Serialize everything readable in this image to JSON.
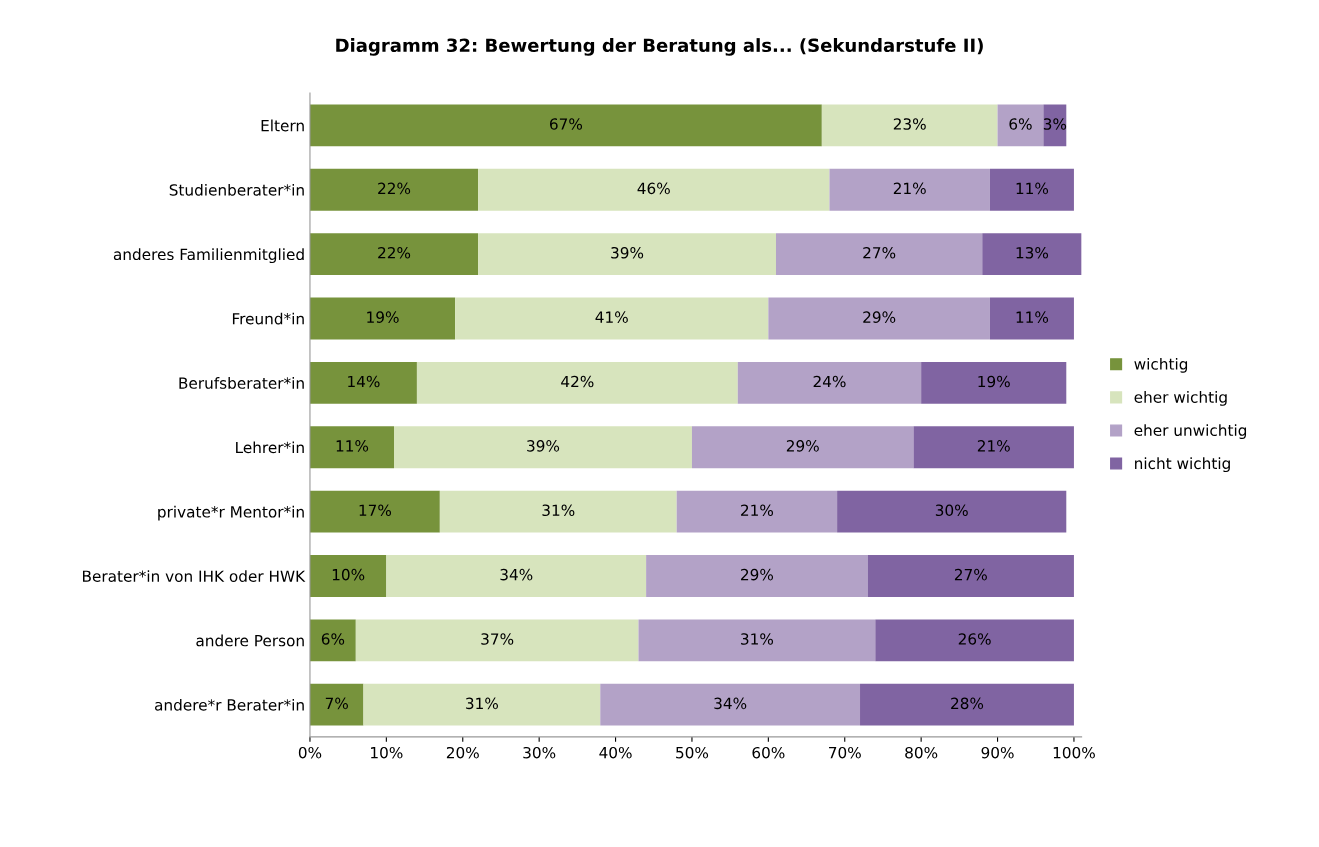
{
  "chart_data": {
    "type": "bar",
    "orientation": "horizontal",
    "stacked": true,
    "title": "Diagramm 32: Bewertung der Beratung als... (Sekundarstufe II)",
    "categories": [
      "Eltern",
      "Studienberater*in",
      "anderes Familienmitglied",
      "Freund*in",
      "Berufsberater*in",
      "Lehrer*in",
      "private*r Mentor*in",
      "Berater*in von IHK oder HWK",
      "andere Person",
      "andere*r Berater*in"
    ],
    "series": [
      {
        "name": "wichtig",
        "color": "#77933c",
        "values": [
          67,
          22,
          22,
          19,
          14,
          11,
          17,
          10,
          6,
          7
        ],
        "value_labels": [
          "67%",
          "22%",
          "22%",
          "19%",
          "14%",
          "11%",
          "17%",
          "10%",
          "6%",
          "7%"
        ]
      },
      {
        "name": "eher wichtig",
        "color": "#d7e4bd",
        "values": [
          23,
          46,
          39,
          41,
          42,
          39,
          31,
          34,
          37,
          31
        ],
        "value_labels": [
          "23%",
          "46%",
          "39%",
          "41%",
          "42%",
          "39%",
          "31%",
          "34%",
          "37%",
          "31%"
        ]
      },
      {
        "name": "eher unwichtig",
        "color": "#b3a2c7",
        "values": [
          6,
          21,
          27,
          29,
          24,
          29,
          21,
          29,
          31,
          34
        ],
        "value_labels": [
          "6%",
          "21%",
          "27%",
          "29%",
          "24%",
          "29%",
          "21%",
          "29%",
          "31%",
          "34%"
        ]
      },
      {
        "name": "nicht wichtig",
        "color": "#8064a2",
        "values": [
          3,
          11,
          13,
          11,
          19,
          21,
          30,
          27,
          26,
          28
        ],
        "value_labels": [
          "3%",
          "11%",
          "13%",
          "11%",
          "19%",
          "21%",
          "30%",
          "27%",
          "26%",
          "28%"
        ]
      }
    ],
    "xlim": [
      0,
      101
    ],
    "xticks": [
      {
        "value": 0,
        "label": "0%"
      },
      {
        "value": 10,
        "label": "10%"
      },
      {
        "value": 20,
        "label": "20%"
      },
      {
        "value": 30,
        "label": "30%"
      },
      {
        "value": 40,
        "label": "40%"
      },
      {
        "value": 50,
        "label": "50%"
      },
      {
        "value": 60,
        "label": "60%"
      },
      {
        "value": 70,
        "label": "70%"
      },
      {
        "value": 80,
        "label": "80%"
      },
      {
        "value": 90,
        "label": "90%"
      },
      {
        "value": 100,
        "label": "100%"
      }
    ],
    "grid": false,
    "legend": "right"
  }
}
